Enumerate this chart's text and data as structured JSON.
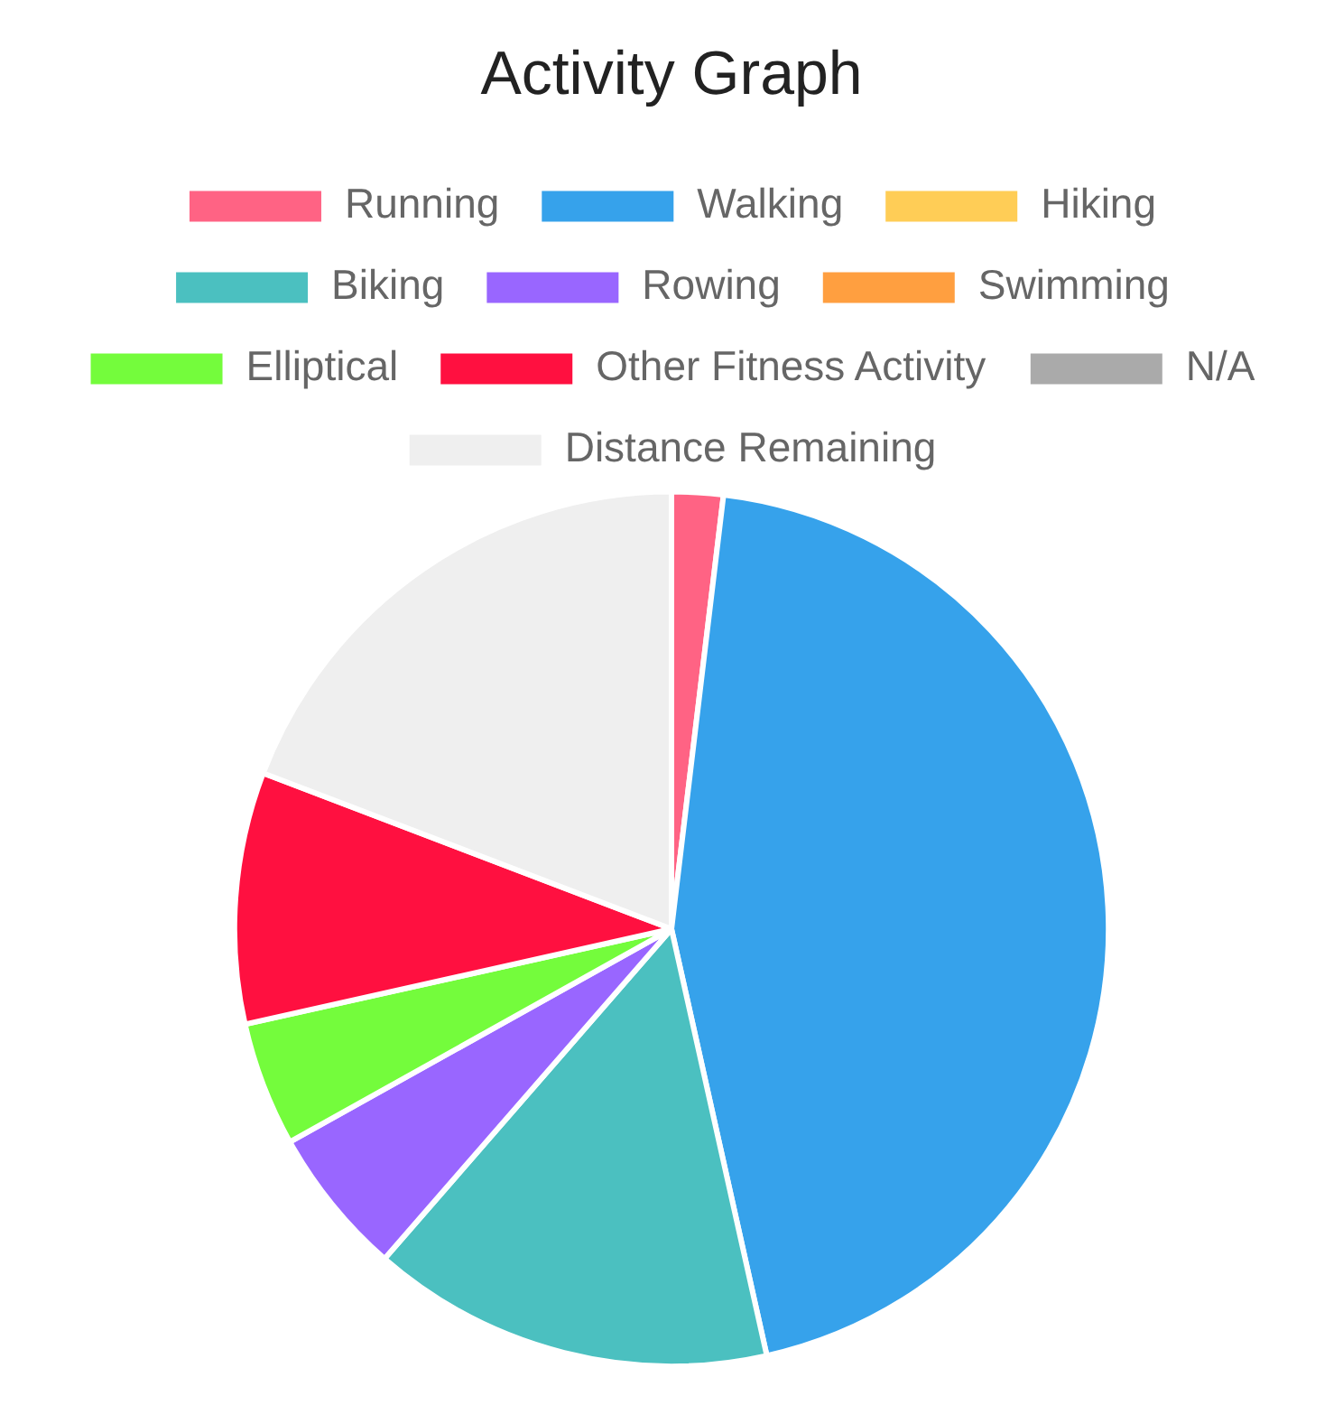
{
  "chart_data": {
    "type": "pie",
    "title": "Activity Graph",
    "categories": [
      "Running",
      "Walking",
      "Hiking",
      "Biking",
      "Rowing",
      "Swimming",
      "Elliptical",
      "Other Fitness Activity",
      "N/A",
      "Distance Remaining"
    ],
    "values": [
      1.9,
      44.6,
      0,
      14.9,
      5.5,
      0,
      4.6,
      9.3,
      0,
      19.2
    ],
    "colors": [
      "#ff6384",
      "#36a2eb",
      "#ffcd56",
      "#4bc0c0",
      "#9966ff",
      "#ff9f40",
      "#74fc3c",
      "#ff1040",
      "#aaaaaa",
      "#efefef"
    ],
    "legend": "top"
  }
}
